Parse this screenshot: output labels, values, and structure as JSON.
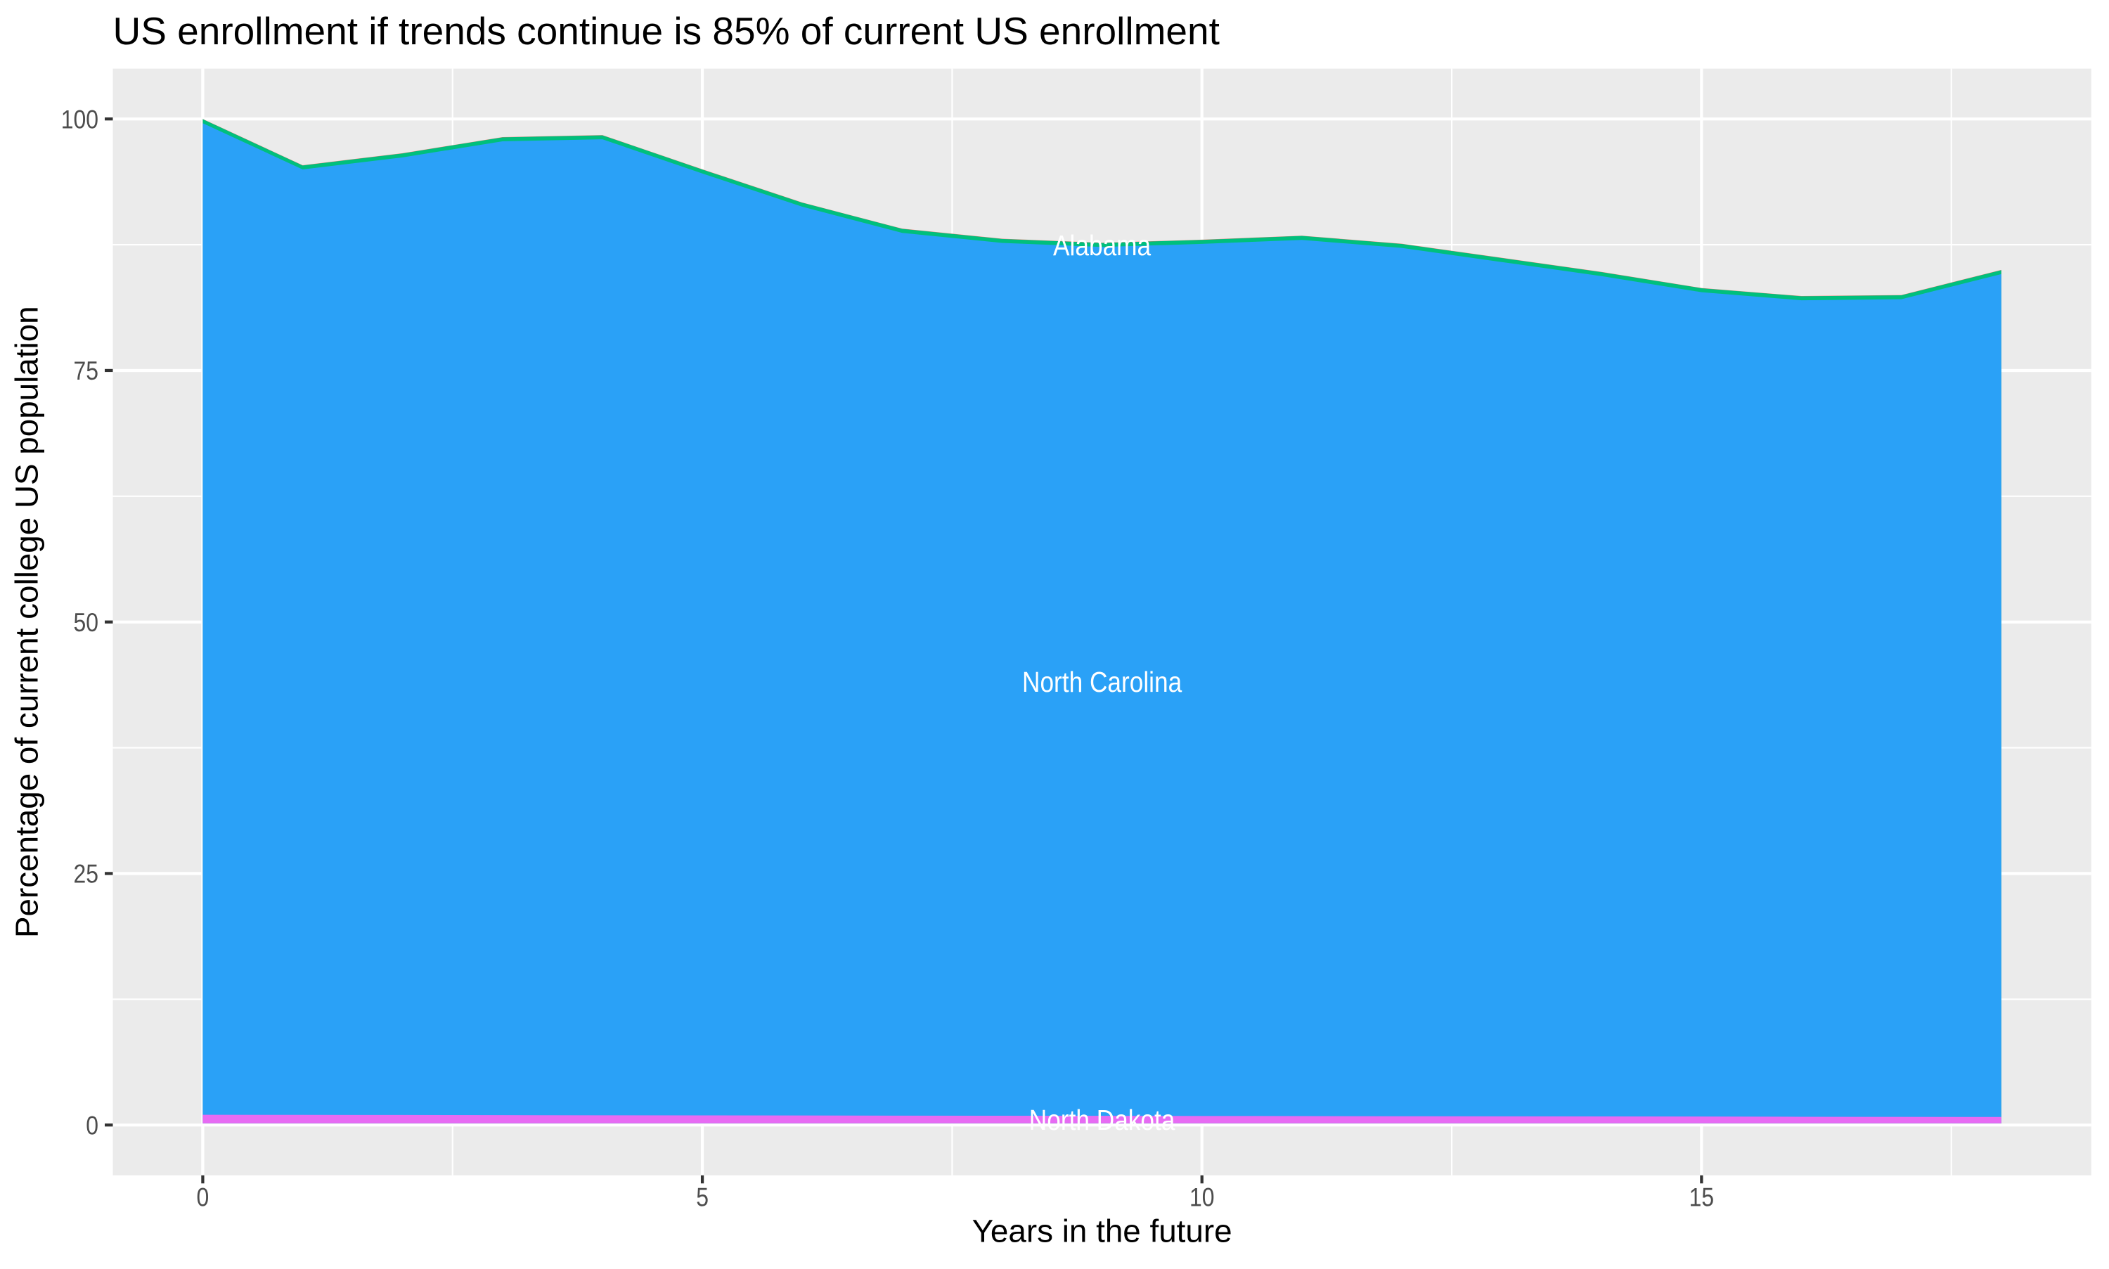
{
  "chart_data": {
    "type": "area",
    "title": "US enrollment if trends continue is 85% of current US enrollment",
    "xlabel": "Years in the future",
    "ylabel": "Percentage of current college US population",
    "legend_position": "none",
    "grid": true,
    "panel_background_color": "#EBEBEB",
    "gridline_color": "#FFFFFF",
    "tick_color": "#333333",
    "tick_label_color": "#4D4D4D",
    "text_color": "#000000",
    "area_label_color": "#FFFFFF",
    "x": [
      0,
      1,
      2,
      3,
      4,
      5,
      6,
      7,
      8,
      9,
      10,
      11,
      12,
      13,
      14,
      15,
      16,
      17,
      18
    ],
    "x_ticks": [
      "0",
      "5",
      "10",
      "15"
    ],
    "x_tick_values": [
      0,
      5,
      10,
      15
    ],
    "x_minor_tick_values": [
      2.5,
      7.5,
      12.5,
      17.5
    ],
    "y_ticks": [
      "0",
      "25",
      "50",
      "75",
      "100"
    ],
    "y_tick_values": [
      0,
      25,
      50,
      75,
      100
    ],
    "y_minor_tick_values": [
      12.5,
      37.5,
      62.5,
      87.5
    ],
    "xlim": [
      -0.9,
      18.9
    ],
    "ylim": [
      -5,
      105
    ],
    "stack_baseline": 0.17,
    "bands": [
      {
        "name": "top-edge-sliver",
        "label": null,
        "color": "#F8766D",
        "upper": [
          100.0,
          95.4,
          96.6,
          98.2,
          98.4,
          95.0,
          91.7,
          89.1,
          88.1,
          87.7,
          88.0,
          88.4,
          87.6,
          86.2,
          84.8,
          83.2,
          82.4,
          82.5,
          85.0
        ]
      },
      {
        "name": "Alabama",
        "label": {
          "text": "Alabama",
          "x": 9
        },
        "color": "#00BF7D",
        "upper": [
          99.975,
          95.375,
          96.575,
          98.175,
          98.375,
          94.975,
          91.675,
          89.075,
          88.075,
          87.675,
          87.975,
          88.375,
          87.575,
          86.175,
          84.775,
          83.175,
          82.375,
          82.475,
          84.975
        ]
      },
      {
        "name": "North Carolina",
        "label": {
          "text": "North Carolina",
          "x": 9
        },
        "color": "#2AA1F7",
        "upper": [
          99.58,
          94.98,
          96.18,
          97.78,
          97.98,
          94.58,
          91.28,
          88.68,
          87.68,
          87.28,
          87.58,
          87.98,
          87.18,
          85.78,
          84.38,
          82.78,
          81.98,
          82.08,
          84.58
        ]
      },
      {
        "name": "North Dakota",
        "label": {
          "text": "North Dakota",
          "x": 9
        },
        "color": "#E76BF3",
        "upper": [
          1.02,
          1.01,
          1.0,
          0.98,
          0.97,
          0.96,
          0.95,
          0.93,
          0.92,
          0.91,
          0.9,
          0.89,
          0.87,
          0.86,
          0.85,
          0.84,
          0.82,
          0.81,
          0.8
        ]
      }
    ]
  }
}
